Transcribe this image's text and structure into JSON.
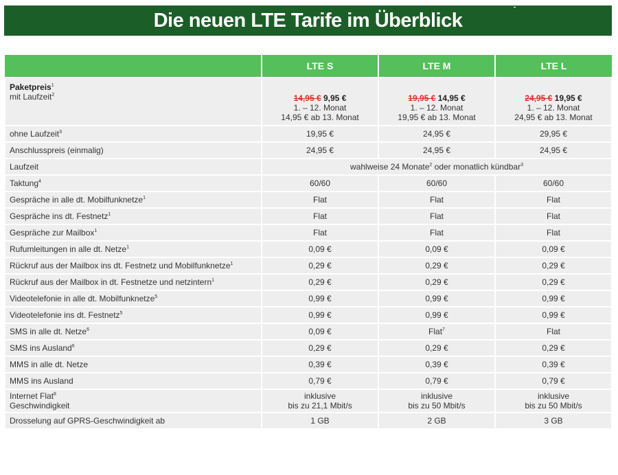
{
  "title": "Die neuen LTE Tarife im Überblick",
  "plans": [
    "LTE S",
    "LTE M",
    "LTE L"
  ],
  "price": {
    "label_bold": "Paketpreis",
    "label_bold_sup": "1",
    "label2": "mit Laufzeit",
    "label2_sup": "2",
    "cells": [
      {
        "old": "14,95 €",
        "new": "9,95 €",
        "line2": "1. – 12. Monat",
        "line3": "14,95 € ab 13. Monat"
      },
      {
        "old": "19,95 €",
        "new": "14,95 €",
        "line2": "1. – 12. Monat",
        "line3": "19,95 € ab 13. Monat"
      },
      {
        "old": "24,95 €",
        "new": "19,95 €",
        "line2": "1. – 12. Monat",
        "line3": "24,95 € ab 13. Monat"
      }
    ]
  },
  "rows": [
    {
      "label": "ohne Laufzeit",
      "sup": "3",
      "values": [
        "19,95 €",
        "24,95 €",
        "29,95 €"
      ]
    },
    {
      "label": "Anschlusspreis (einmalig)",
      "sup": "",
      "values": [
        "24,95 €",
        "24,95 €",
        "24,95 €"
      ]
    },
    {
      "label": "Taktung",
      "sup": "4",
      "values": [
        "60/60",
        "60/60",
        "60/60"
      ]
    },
    {
      "label": "Gespräche in alle dt. Mobilfunknetze",
      "sup": "1",
      "values": [
        "Flat",
        "Flat",
        "Flat"
      ]
    },
    {
      "label": "Gespräche ins dt. Festnetz",
      "sup": "1",
      "values": [
        "Flat",
        "Flat",
        "Flat"
      ]
    },
    {
      "label": "Gespräche zur Mailbox",
      "sup": "1",
      "values": [
        "Flat",
        "Flat",
        "Flat"
      ]
    },
    {
      "label": "Rufumleitungen in alle dt. Netze",
      "sup": "1",
      "values": [
        "0,09 €",
        "0,09 €",
        "0,09 €"
      ]
    },
    {
      "label": "Rückruf aus der Mailbox ins dt. Festnetz und Mobilfunknetze",
      "sup": "1",
      "values": [
        "0,29 €",
        "0,29 €",
        "0,29 €"
      ]
    },
    {
      "label": "Rückruf aus der Mailbox in dt. Festnetze und netzintern",
      "sup": "1",
      "values": [
        "0,29 €",
        "0,29 €",
        "0,29 €"
      ]
    },
    {
      "label": "Videotelefonie in alle dt. Mobilfunknetze",
      "sup": "5",
      "values": [
        "0,99 €",
        "0,99 €",
        "0,99 €"
      ]
    },
    {
      "label": "Videotelefonie ins dt. Festnetz",
      "sup": "5",
      "values": [
        "0,99 €",
        "0,99 €",
        "0,99 €"
      ]
    },
    {
      "label": "SMS in alle dt. Netze",
      "sup": "6",
      "values": [
        "0,09 €",
        "Flat",
        "Flat"
      ],
      "value_sups": [
        "",
        "7",
        ""
      ]
    },
    {
      "label": "SMS ins Ausland",
      "sup": "6",
      "values": [
        "0,29 €",
        "0,29 €",
        "0,29 €"
      ]
    },
    {
      "label": "MMS in alle dt. Netze",
      "sup": "",
      "values": [
        "0,39 €",
        "0,39 €",
        "0,39 €"
      ]
    },
    {
      "label": "MMS ins Ausland",
      "sup": "",
      "values": [
        "0,79 €",
        "0,79 €",
        "0,79 €"
      ]
    }
  ],
  "laufzeit": {
    "label": "Laufzeit",
    "text1": "wahlweise 24 Monate",
    "sup1": "2",
    "text2": " oder monatlich kündbar",
    "sup2": "3"
  },
  "internet": {
    "label1": "Internet Flat",
    "label1_sup": "8",
    "label2": "Geschwindigkeit",
    "cells": [
      {
        "line1": "inklusive",
        "line2": "bis zu 21,1 Mbit/s"
      },
      {
        "line1": "inklusive",
        "line2": "bis zu 50 Mbit/s"
      },
      {
        "line1": "inklusive",
        "line2": "bis zu 50 Mbit/s"
      }
    ]
  },
  "throttle": {
    "label": "Drosselung auf GPRS-Geschwindigkeit ab",
    "values": [
      "1 GB",
      "2 GB",
      "3 GB"
    ]
  }
}
